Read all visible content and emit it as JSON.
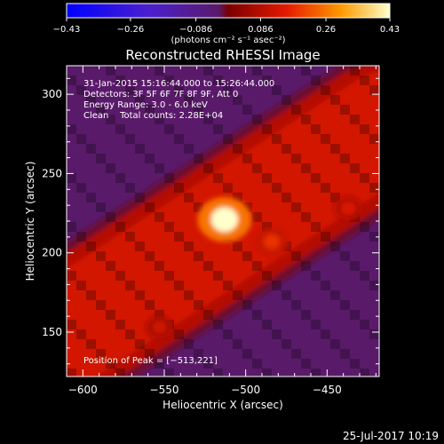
{
  "chart_data": {
    "type": "heatmap",
    "title": "Reconstructed RHESSI Image",
    "xlabel": "Heliocentric X (arcsec)",
    "ylabel": "Heliocentric Y (arcsec)",
    "xlim": [
      -610,
      -418
    ],
    "ylim": [
      122,
      318
    ],
    "x_ticks": [
      -600,
      -550,
      -500,
      -450
    ],
    "x_tick_labels": [
      "−600",
      "−550",
      "−500",
      "−450"
    ],
    "y_ticks": [
      150,
      200,
      250,
      300
    ],
    "y_tick_labels": [
      "150",
      "200",
      "250",
      "300"
    ],
    "colorbar": {
      "ticks": [
        -0.43,
        -0.26,
        -0.086,
        0.086,
        0.26,
        0.43
      ],
      "tick_labels": [
        "−0.43",
        "−0.26",
        "−0.086",
        "0.086",
        "0.26",
        "0.43"
      ],
      "units_label": "(photons cm⁻² s⁻¹ asec⁻²)",
      "range": [
        -0.43,
        0.43
      ]
    },
    "annotations": [
      "31-Jan-2015 15:16:44.000 to 15:26:44.000",
      "Detectors: 3F 5F 6F 7F 8F 9F, Att 0",
      "Energy Range: 3.0 - 6.0 keV",
      "Clean    Total counts: 2.28E+04"
    ],
    "peak_label": "Position of Peak = [−513,221]",
    "peak": [
      -513,
      221
    ],
    "sources": [
      {
        "x": -513,
        "y": 221,
        "value": 0.43
      },
      {
        "x": -484,
        "y": 207,
        "value": 0.18
      },
      {
        "x": -437,
        "y": 228,
        "value": 0.14
      },
      {
        "x": -553,
        "y": 153,
        "value": 0.12
      }
    ],
    "band": {
      "from": [
        -610,
        150
      ],
      "to": [
        -418,
        278
      ],
      "value": 0.13
    },
    "background_value": -0.02
  },
  "footer": {
    "timestamp": "25-Jul-2017 10:19"
  }
}
